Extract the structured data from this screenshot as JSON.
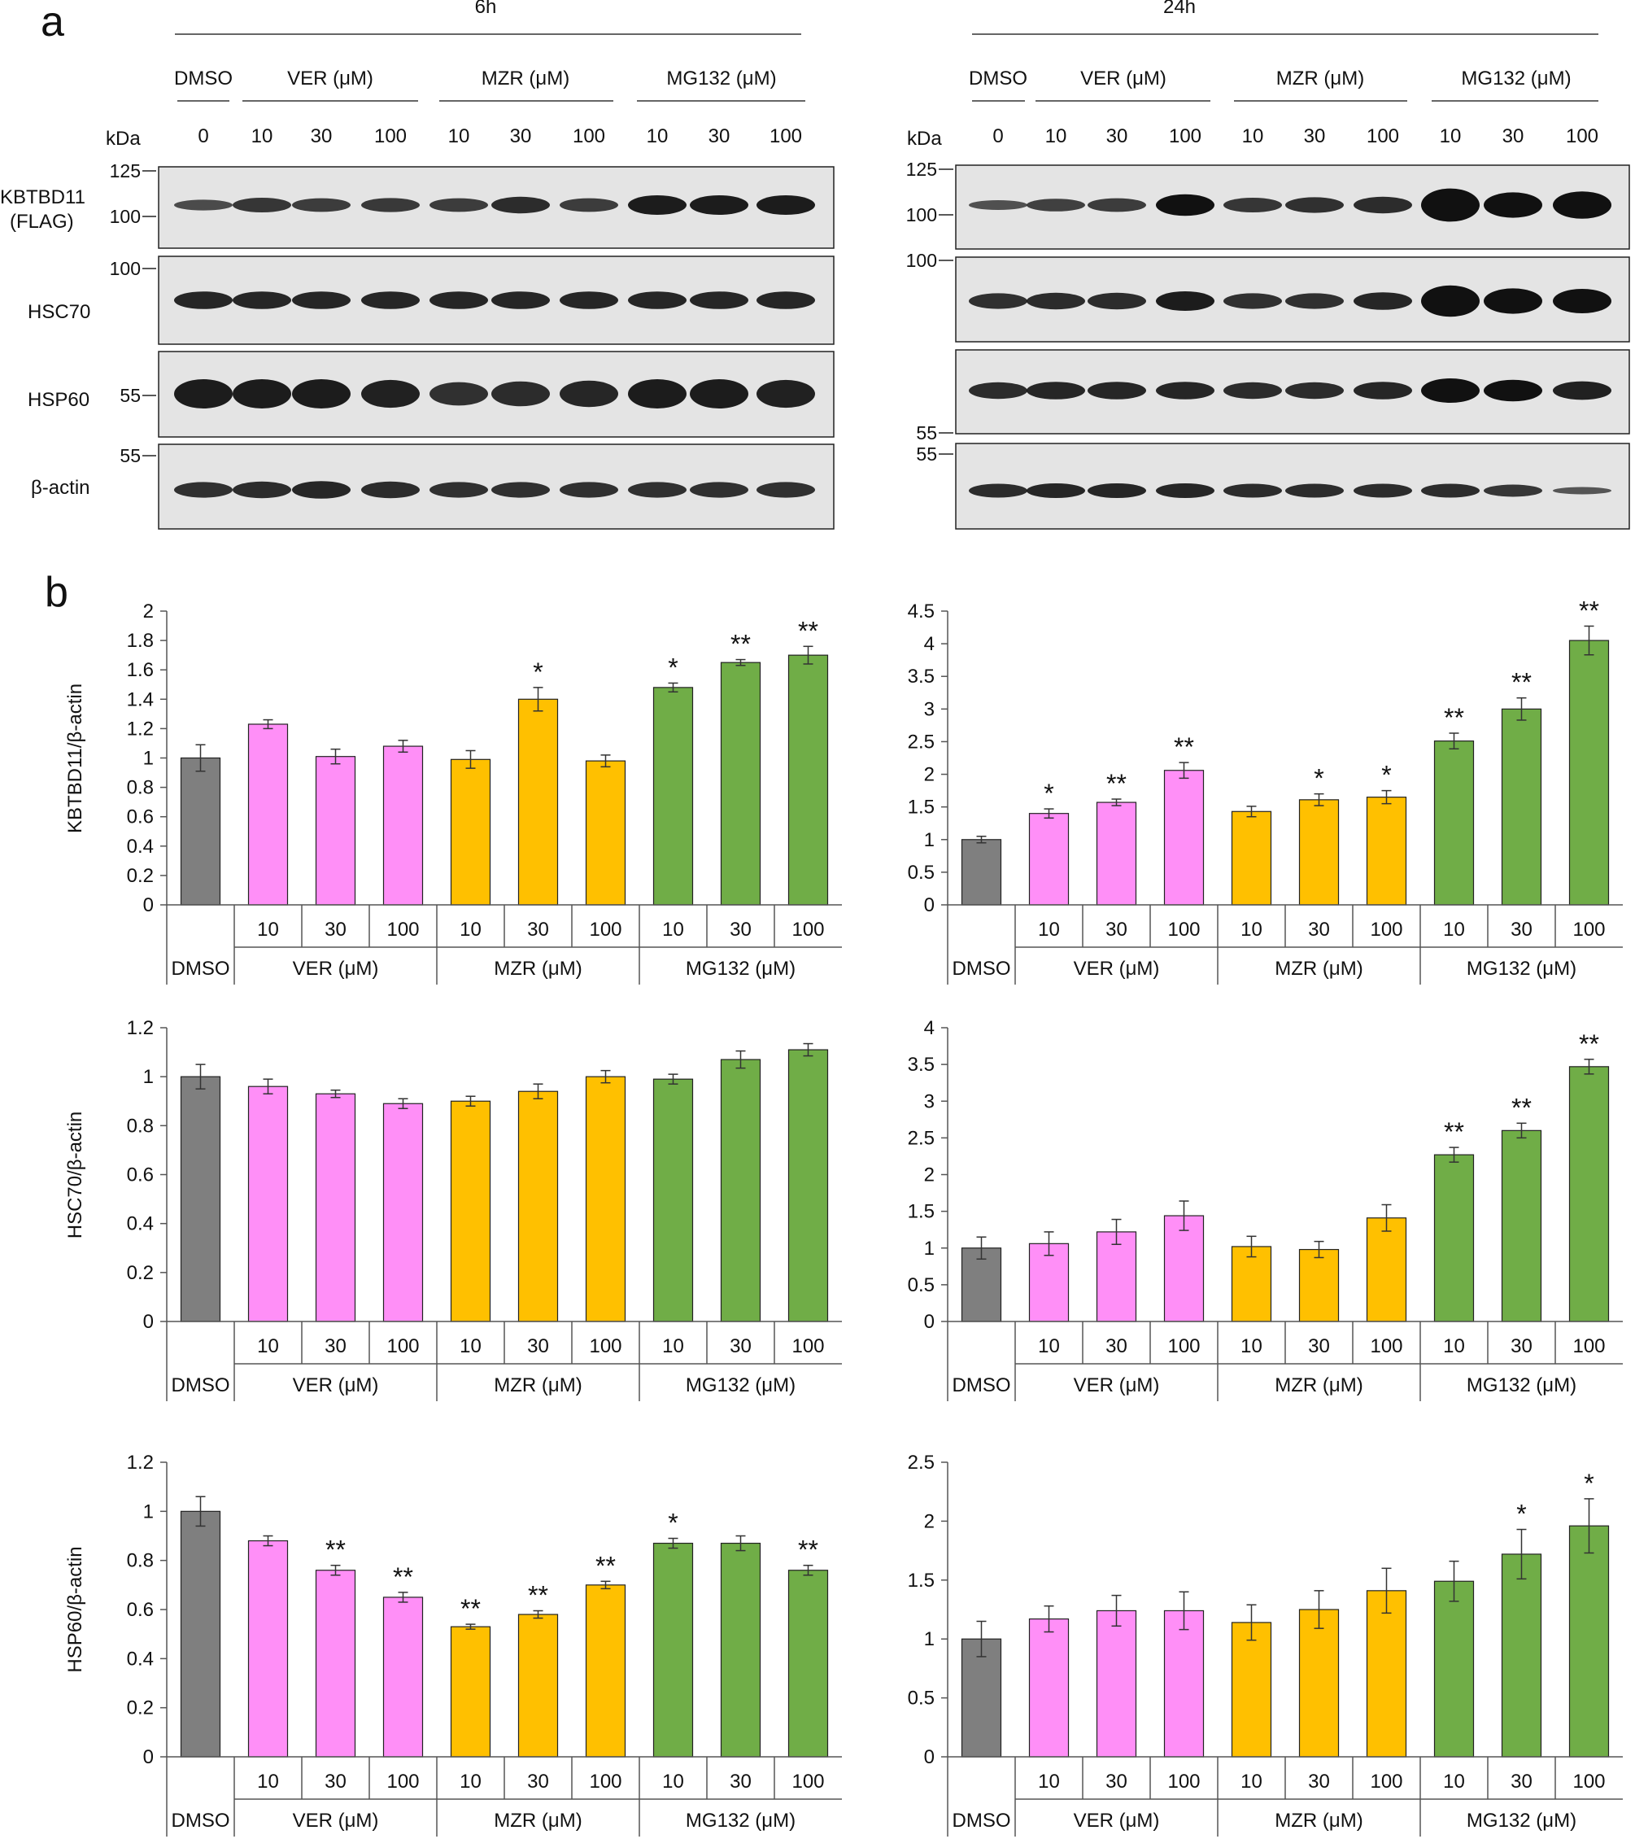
{
  "figure": {
    "panel_a_letter": "a",
    "panel_b_letter": "b",
    "blot_labels": {
      "time_6h": "6h",
      "time_24h": "24h",
      "group_dmso": "DMSO",
      "group_ver": "VER (μM)",
      "group_mzr": "MZR (μM)",
      "group_mg132": "MG132 (μM)",
      "kda": "kDa",
      "lane_doses": [
        "0",
        "10",
        "30",
        "100",
        "10",
        "30",
        "100",
        "10",
        "30",
        "100"
      ],
      "marker_125": "125",
      "marker_100": "100",
      "marker_55": "55",
      "row_kbtbd11": "KBTBD11",
      "row_flag": "(FLAG)",
      "row_hsc70": "HSC70",
      "row_hsp60": "HSP60",
      "row_bactin": "β-actin"
    },
    "bar_colors": {
      "DMSO": "#7f7f7f",
      "VER": "#ff8ff7",
      "MZR": "#ffc000",
      "MG132": "#70ad47"
    },
    "x_axis": {
      "dmso": "DMSO",
      "doses": [
        "10",
        "30",
        "100"
      ],
      "groups": [
        "VER (μM)",
        "MZR (μM)",
        "MG132 (μM)"
      ]
    }
  },
  "chart_data": [
    {
      "type": "bar",
      "time": "6h",
      "protein": "KBTBD11",
      "ylabel": "KBTBD11/β-actin",
      "ylim": [
        0,
        2
      ],
      "yticks": [
        "0",
        "0.2",
        "0.4",
        "0.6",
        "0.8",
        "1",
        "1.2",
        "1.4",
        "1.6",
        "1.8",
        "2"
      ],
      "categories": [
        "DMSO",
        "VER 10",
        "VER 30",
        "VER 100",
        "MZR 10",
        "MZR 30",
        "MZR 100",
        "MG132 10",
        "MG132 30",
        "MG132 100"
      ],
      "values": [
        1.0,
        1.23,
        1.01,
        1.08,
        0.99,
        1.4,
        0.98,
        1.48,
        1.65,
        1.7
      ],
      "errors": [
        0.09,
        0.03,
        0.05,
        0.04,
        0.06,
        0.08,
        0.04,
        0.03,
        0.02,
        0.06
      ],
      "significance": [
        "",
        "",
        "",
        "",
        "",
        "*",
        "",
        "*",
        "**",
        "**"
      ]
    },
    {
      "type": "bar",
      "time": "24h",
      "protein": "KBTBD11",
      "ylabel": "",
      "ylim": [
        0,
        4.5
      ],
      "yticks": [
        "0",
        "0.5",
        "1",
        "1.5",
        "2",
        "2.5",
        "3",
        "3.5",
        "4",
        "4.5"
      ],
      "categories": [
        "DMSO",
        "VER 10",
        "VER 30",
        "VER 100",
        "MZR 10",
        "MZR 30",
        "MZR 100",
        "MG132 10",
        "MG132 30",
        "MG132 100"
      ],
      "values": [
        1.0,
        1.4,
        1.57,
        2.06,
        1.43,
        1.61,
        1.65,
        2.51,
        3.0,
        4.05
      ],
      "errors": [
        0.05,
        0.07,
        0.05,
        0.12,
        0.08,
        0.09,
        0.1,
        0.12,
        0.17,
        0.22
      ],
      "significance": [
        "",
        "*",
        "**",
        "**",
        "",
        "*",
        "*",
        "**",
        "**",
        "**"
      ]
    },
    {
      "type": "bar",
      "time": "6h",
      "protein": "HSC70",
      "ylabel": "HSC70/β-actin",
      "ylim": [
        0,
        1.2
      ],
      "yticks": [
        "0",
        "0.2",
        "0.4",
        "0.6",
        "0.8",
        "1",
        "1.2"
      ],
      "categories": [
        "DMSO",
        "VER 10",
        "VER 30",
        "VER 100",
        "MZR 10",
        "MZR 30",
        "MZR 100",
        "MG132 10",
        "MG132 30",
        "MG132 100"
      ],
      "values": [
        1.0,
        0.96,
        0.93,
        0.89,
        0.9,
        0.94,
        1.0,
        0.99,
        1.07,
        1.11
      ],
      "errors": [
        0.05,
        0.03,
        0.015,
        0.02,
        0.02,
        0.03,
        0.025,
        0.02,
        0.035,
        0.025
      ],
      "significance": [
        "",
        "",
        "",
        "",
        "",
        "",
        "",
        "",
        "",
        ""
      ]
    },
    {
      "type": "bar",
      "time": "24h",
      "protein": "HSC70",
      "ylabel": "",
      "ylim": [
        0,
        4
      ],
      "yticks": [
        "0",
        "0.5",
        "1",
        "1.5",
        "2",
        "2.5",
        "3",
        "3.5",
        "4"
      ],
      "categories": [
        "DMSO",
        "VER 10",
        "VER 30",
        "VER 100",
        "MZR 10",
        "MZR 30",
        "MZR 100",
        "MG132 10",
        "MG132 30",
        "MG132 100"
      ],
      "values": [
        1.0,
        1.06,
        1.22,
        1.44,
        1.02,
        0.98,
        1.41,
        2.27,
        2.6,
        3.47
      ],
      "errors": [
        0.15,
        0.16,
        0.17,
        0.2,
        0.14,
        0.11,
        0.18,
        0.1,
        0.1,
        0.1
      ],
      "significance": [
        "",
        "",
        "",
        "",
        "",
        "",
        "",
        "**",
        "**",
        "**"
      ]
    },
    {
      "type": "bar",
      "time": "6h",
      "protein": "HSP60",
      "ylabel": "HSP60/β-actin",
      "ylim": [
        0,
        1.2
      ],
      "yticks": [
        "0",
        "0.2",
        "0.4",
        "0.6",
        "0.8",
        "1",
        "1.2"
      ],
      "categories": [
        "DMSO",
        "VER 10",
        "VER 30",
        "VER 100",
        "MZR 10",
        "MZR 30",
        "MZR 100",
        "MG132 10",
        "MG132 30",
        "MG132 100"
      ],
      "values": [
        1.0,
        0.88,
        0.76,
        0.65,
        0.53,
        0.58,
        0.7,
        0.87,
        0.87,
        0.76
      ],
      "errors": [
        0.06,
        0.02,
        0.02,
        0.02,
        0.01,
        0.015,
        0.015,
        0.02,
        0.03,
        0.02
      ],
      "significance": [
        "",
        "",
        "**",
        "**",
        "**",
        "**",
        "**",
        "*",
        "",
        "**"
      ]
    },
    {
      "type": "bar",
      "time": "24h",
      "protein": "HSP60",
      "ylabel": "",
      "ylim": [
        0,
        2.5
      ],
      "yticks": [
        "0",
        "0.5",
        "1",
        "1.5",
        "2",
        "2.5"
      ],
      "categories": [
        "DMSO",
        "VER 10",
        "VER 30",
        "VER 100",
        "MZR 10",
        "MZR 30",
        "MZR 100",
        "MG132 10",
        "MG132 30",
        "MG132 100"
      ],
      "values": [
        1.0,
        1.17,
        1.24,
        1.24,
        1.14,
        1.25,
        1.41,
        1.49,
        1.72,
        1.96
      ],
      "errors": [
        0.15,
        0.11,
        0.13,
        0.16,
        0.15,
        0.16,
        0.19,
        0.17,
        0.21,
        0.23
      ],
      "significance": [
        "",
        "",
        "",
        "",
        "",
        "",
        "",
        "",
        "*",
        "*"
      ]
    }
  ]
}
